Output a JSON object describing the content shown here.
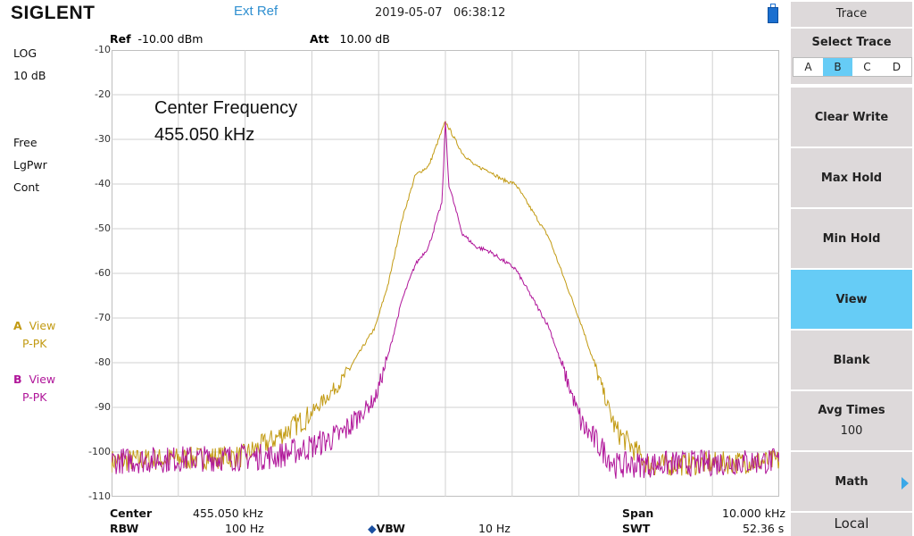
{
  "header": {
    "logo": "SIGLENT",
    "ext_ref": "Ext Ref",
    "date": "2019-05-07",
    "time": "06:38:12"
  },
  "left_status": {
    "scale_type": "LOG",
    "scale_div": "10 dB",
    "sweep_mode": "Free",
    "detector": "LgPwr",
    "sweep": "Cont",
    "trace_a": {
      "letter": "A",
      "mode": "View",
      "det": "P-PK",
      "color": "#c29a12"
    },
    "trace_b": {
      "letter": "B",
      "mode": "View",
      "det": "P-PK",
      "color": "#b0169a"
    }
  },
  "plot_header": {
    "ref_label": "Ref",
    "ref_value": "-10.00 dBm",
    "att_label": "Att",
    "att_value": "10.00 dB"
  },
  "annotation": {
    "line1": "Center Frequency",
    "line2": "455.050 kHz"
  },
  "y_axis": {
    "ticks": [
      "-10",
      "-20",
      "-30",
      "-40",
      "-50",
      "-60",
      "-70",
      "-80",
      "-90",
      "-100",
      "-110"
    ]
  },
  "footer": {
    "center_label": "Center",
    "center_value": "455.050 kHz",
    "rbw_label": "RBW",
    "rbw_value": "100 Hz",
    "vbw_label": "VBW",
    "vbw_value": "10 Hz",
    "span_label": "Span",
    "span_value": "10.000 kHz",
    "swt_label": "SWT",
    "swt_value": "52.36 s"
  },
  "menu": {
    "title": "Trace",
    "select_trace_label": "Select Trace",
    "traces": [
      "A",
      "B",
      "C",
      "D"
    ],
    "selected_trace": "B",
    "buttons": [
      {
        "label": "Clear Write",
        "sub": ""
      },
      {
        "label": "Max Hold",
        "sub": ""
      },
      {
        "label": "Min Hold",
        "sub": ""
      },
      {
        "label": "View",
        "sub": ""
      },
      {
        "label": "Blank",
        "sub": ""
      },
      {
        "label": "Avg Times",
        "sub": "100"
      },
      {
        "label": "Math",
        "sub": ""
      }
    ],
    "active_button": "View",
    "local_label": "Local"
  },
  "chart_data": {
    "type": "line",
    "title": "",
    "xlabel": "",
    "ylabel": "",
    "x_range_khz": [
      450.05,
      460.05
    ],
    "ylim": [
      -110,
      -10
    ],
    "grid": true,
    "series": [
      {
        "name": "A",
        "color": "#c29a12",
        "x_khz": [
          450.05,
          452.0,
          452.5,
          453.0,
          453.5,
          454.0,
          454.2,
          454.4,
          454.6,
          454.8,
          455.05,
          455.3,
          455.5,
          455.7,
          455.9,
          456.1,
          456.6,
          457.1,
          457.6,
          458.1,
          460.05
        ],
        "values": [
          -102,
          -101,
          -97,
          -92,
          -84,
          -72,
          -62,
          -48,
          -38,
          -36,
          -26,
          -33,
          -36,
          -37,
          -39,
          -40,
          -52,
          -72,
          -95,
          -103,
          -102
        ]
      },
      {
        "name": "B",
        "color": "#b0169a",
        "x_khz": [
          450.05,
          452.5,
          453.0,
          453.5,
          454.0,
          454.2,
          454.4,
          454.6,
          454.8,
          455.0,
          455.05,
          455.1,
          455.3,
          455.5,
          455.7,
          455.9,
          456.1,
          456.6,
          457.1,
          457.6,
          460.05
        ],
        "values": [
          -102,
          -101,
          -99,
          -96,
          -88,
          -78,
          -66,
          -58,
          -54,
          -44,
          -26,
          -40,
          -51,
          -54,
          -55,
          -57,
          -59,
          -72,
          -94,
          -103,
          -102
        ]
      }
    ]
  }
}
